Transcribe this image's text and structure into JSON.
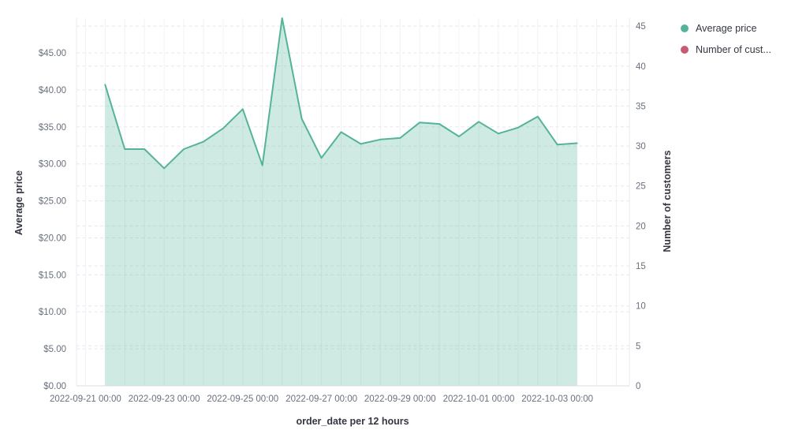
{
  "legend": {
    "position": "top-right",
    "items": [
      {
        "label": "Average price",
        "color": "#54B399"
      },
      {
        "label": "Number of cust...",
        "color": "#C65B73"
      }
    ]
  },
  "colors": {
    "series_line": "#54B399",
    "series_fill_opacity": 0.28,
    "vertical_grid": "#f1f2f5",
    "horizontal_grid_dashed": "#e5e8ee",
    "plot_border": "#e9ebf0",
    "baseline": "#d8dce3",
    "tick_text": "#69707D",
    "title_text": "#343741"
  },
  "chart_data": {
    "type": "area",
    "title": "",
    "x_label": "order_date per 12 hours",
    "y_left_label": "Average price",
    "y_right_label": "Number of customers",
    "x": [
      "2022-09-21 12:00",
      "2022-09-22 00:00",
      "2022-09-22 12:00",
      "2022-09-23 00:00",
      "2022-09-23 12:00",
      "2022-09-24 00:00",
      "2022-09-24 12:00",
      "2022-09-25 00:00",
      "2022-09-25 12:00",
      "2022-09-26 00:00",
      "2022-09-26 12:00",
      "2022-09-27 00:00",
      "2022-09-27 12:00",
      "2022-09-28 00:00",
      "2022-09-28 12:00",
      "2022-09-29 00:00",
      "2022-09-29 12:00",
      "2022-09-30 00:00",
      "2022-09-30 12:00",
      "2022-10-01 00:00",
      "2022-10-01 12:00",
      "2022-10-02 00:00",
      "2022-10-02 12:00",
      "2022-10-03 00:00",
      "2022-10-03 12:00"
    ],
    "series": [
      {
        "name": "Average price",
        "axis": "left",
        "color": "#54B399",
        "values": [
          40.7,
          32.0,
          32.0,
          29.4,
          32.0,
          33.0,
          34.8,
          37.4,
          29.8,
          49.7,
          36.1,
          30.8,
          34.3,
          32.7,
          33.3,
          33.5,
          35.6,
          35.4,
          33.7,
          35.7,
          34.1,
          34.9,
          36.4,
          32.6,
          32.8
        ]
      },
      {
        "name": "Number of customers",
        "axis": "right",
        "color": "#C65B73",
        "visible_in_plot": false,
        "values": []
      }
    ],
    "left_axis": {
      "ticks": [
        "$0.00",
        "$5.00",
        "$10.00",
        "$15.00",
        "$20.00",
        "$25.00",
        "$30.00",
        "$35.00",
        "$40.00",
        "$45.00"
      ],
      "tick_values": [
        0,
        5,
        10,
        15,
        20,
        25,
        30,
        35,
        40,
        45
      ],
      "range": [
        0,
        49.7
      ]
    },
    "right_axis": {
      "ticks": [
        "0",
        "5",
        "10",
        "15",
        "20",
        "25",
        "30",
        "35",
        "40",
        "45"
      ],
      "tick_values": [
        0,
        5,
        10,
        15,
        20,
        25,
        30,
        35,
        40,
        45
      ],
      "range": [
        0,
        46
      ]
    },
    "x_tick_labels": [
      "2022-09-21 00:00",
      "2022-09-23 00:00",
      "2022-09-25 00:00",
      "2022-09-27 00:00",
      "2022-09-29 00:00",
      "2022-10-01 00:00",
      "2022-10-03 00:00"
    ],
    "grid": {
      "vertical": "solid, every 12 hours",
      "horizontal": "dashed, both axes",
      "legend_position": "top-right"
    }
  }
}
